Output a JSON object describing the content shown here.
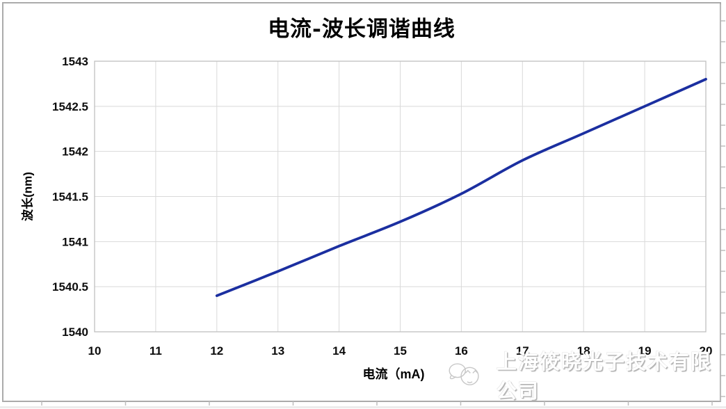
{
  "chart": {
    "title": "电流-波长调谐曲线",
    "xlabel": "电流（mA)",
    "ylabel": "波长(nm)"
  },
  "chart_data": {
    "type": "line",
    "title": "电流-波长调谐曲线",
    "xlabel": "电流（mA)",
    "ylabel": "波长(nm)",
    "x": [
      12,
      13,
      14,
      15,
      16,
      17,
      18,
      19,
      20
    ],
    "series": [
      {
        "name": "波长",
        "values": [
          1540.4,
          1540.67,
          1540.95,
          1541.22,
          1541.53,
          1541.9,
          1542.2,
          1542.5,
          1542.8
        ]
      }
    ],
    "xlim": [
      10,
      20
    ],
    "ylim": [
      1540,
      1543
    ],
    "x_ticks": [
      10,
      11,
      12,
      13,
      14,
      15,
      16,
      17,
      18,
      19,
      20
    ],
    "y_ticks": [
      1540,
      1540.5,
      1541,
      1541.5,
      1542,
      1542.5,
      1543
    ],
    "grid": true,
    "legend": "none",
    "line_color": "#1b2fa0"
  },
  "watermark": {
    "text": "上海筱晓光子技术有限公司",
    "logo": "chick-mascot-logo"
  },
  "colors": {
    "line": "#1b2fa0",
    "gridline": "#d9d9d9",
    "plot_border": "#bfbfbf",
    "frame_border": "#ababab",
    "watermark_gray": "#c0c0c0"
  }
}
